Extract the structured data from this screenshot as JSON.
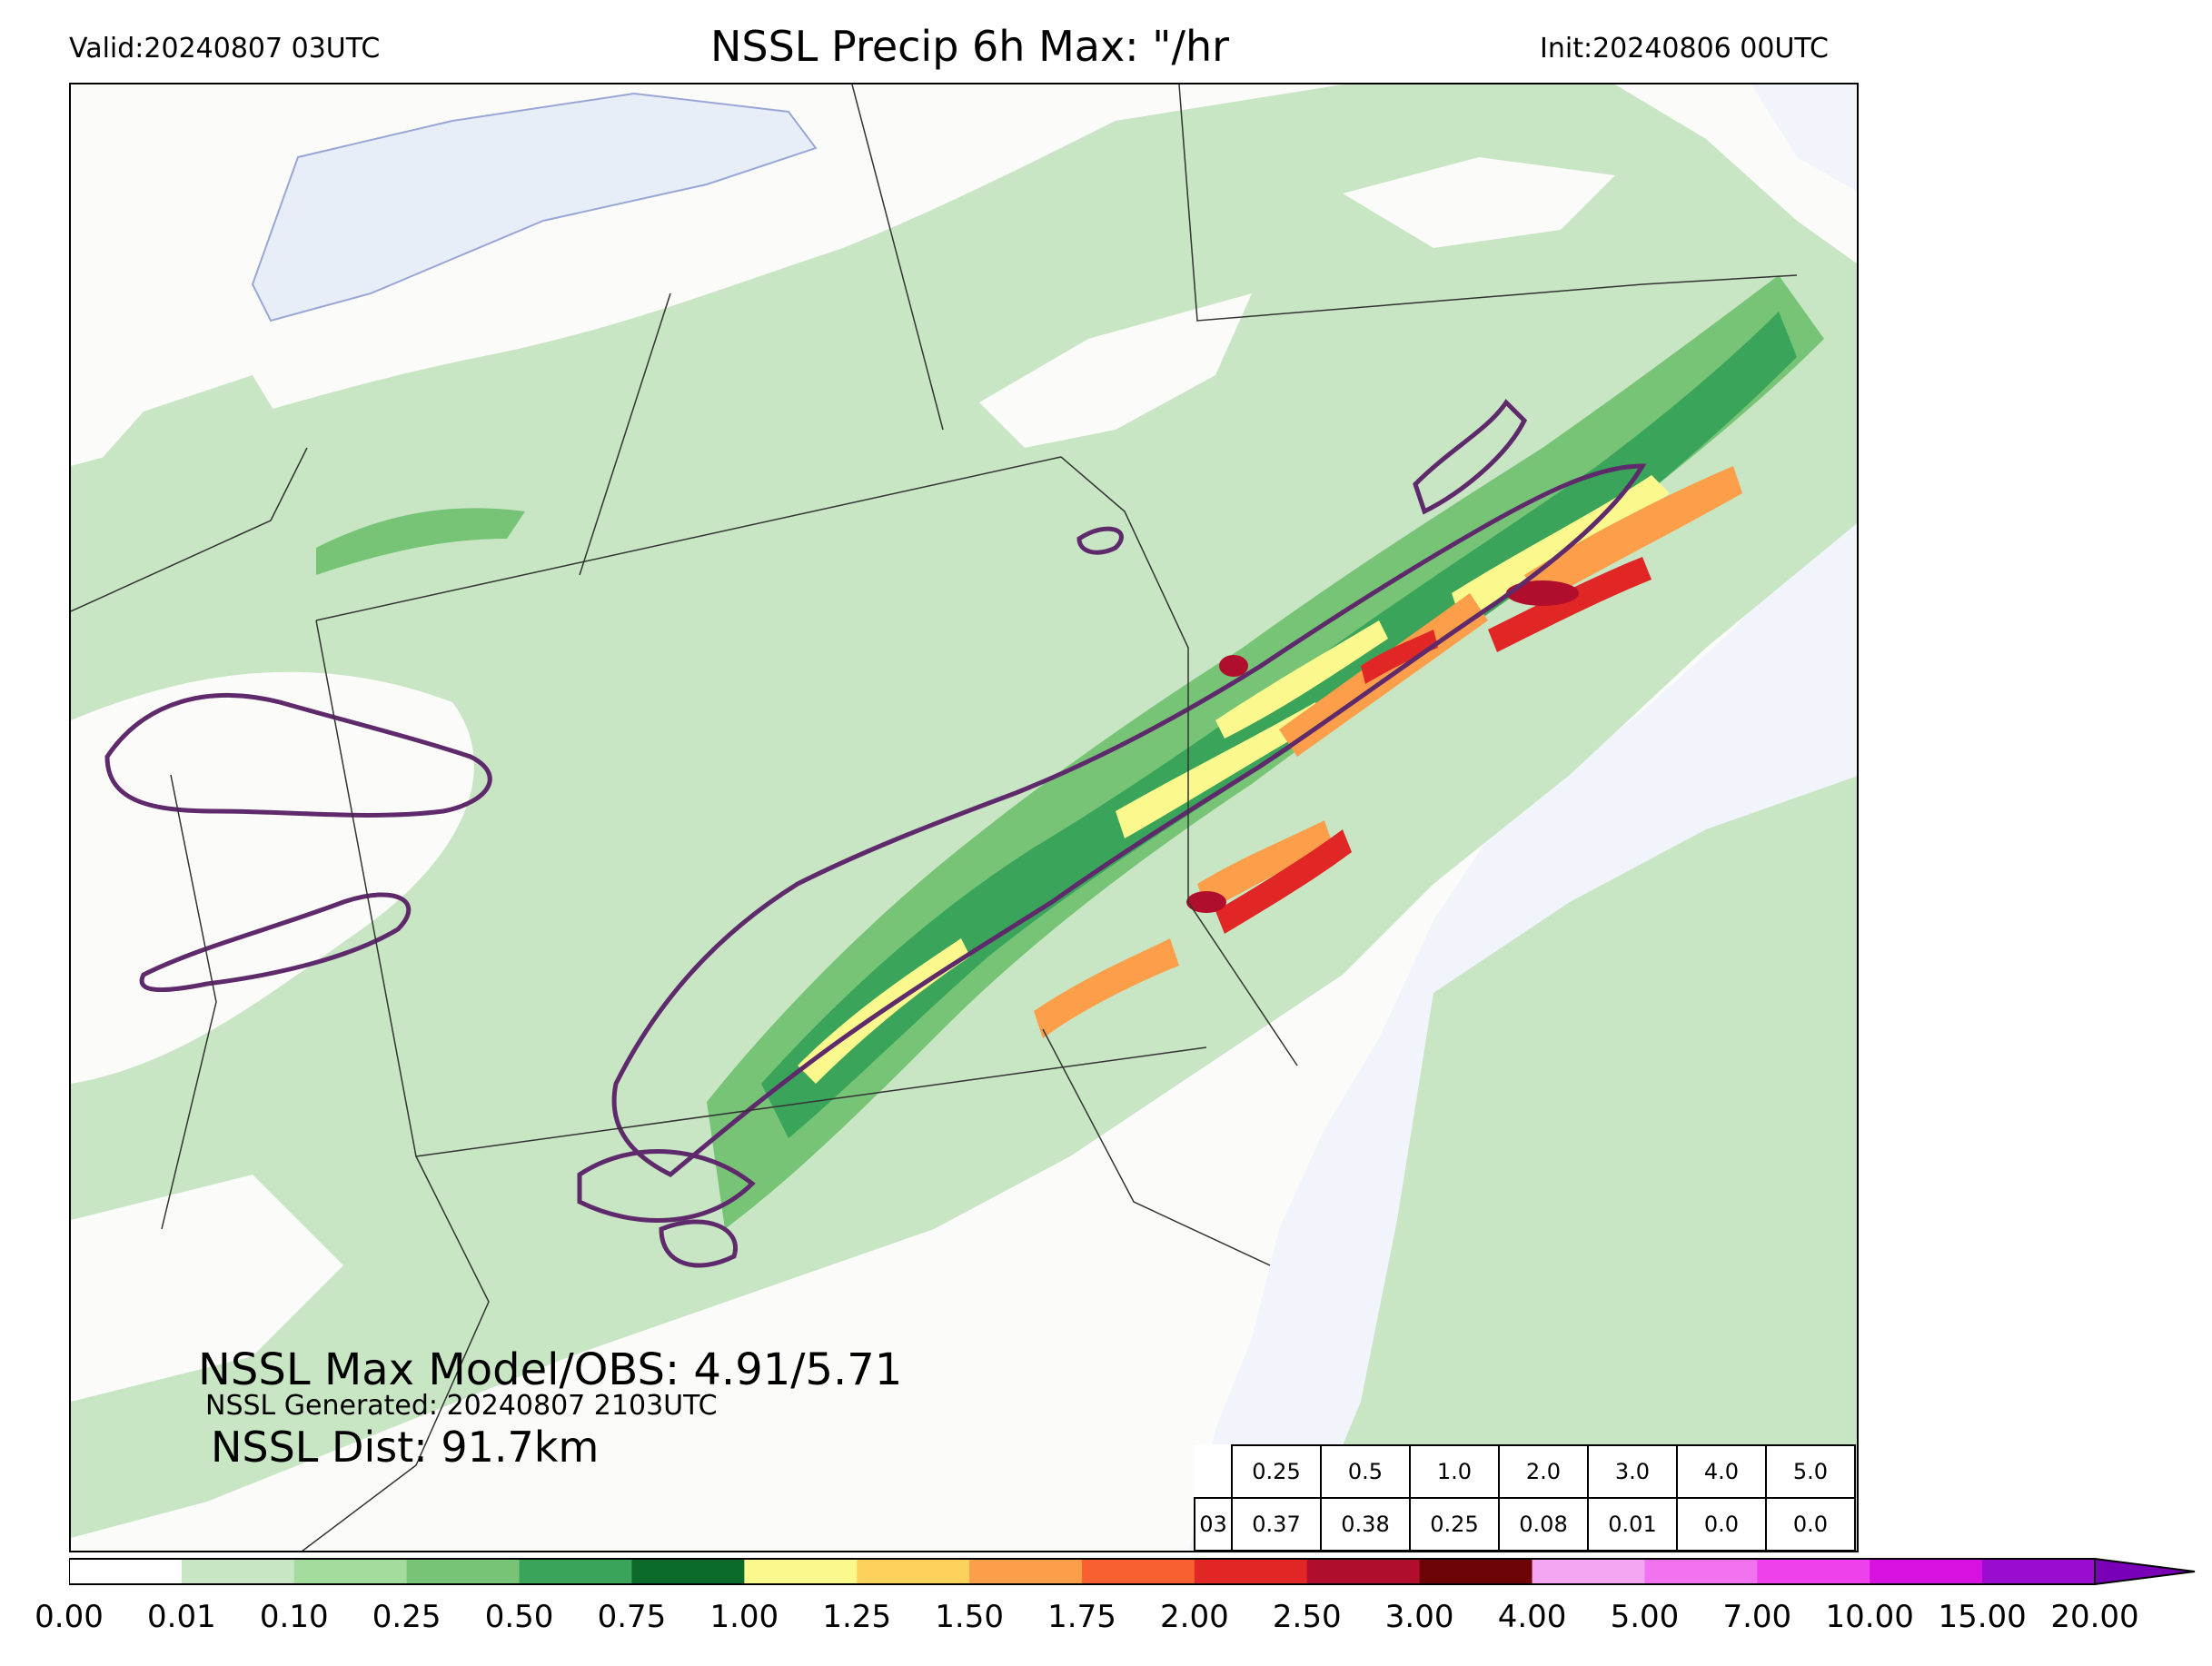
{
  "header": {
    "valid": "Valid:20240807 03UTC",
    "title": "NSSL Precip 6h Max: \"/hr",
    "init": "Init:20240806 00UTC"
  },
  "annotations": {
    "max_model_obs": "NSSL Max Model/OBS: 4.91/5.71",
    "generated": "NSSL Generated: 20240807 2103UTC",
    "distance": "NSSL Dist: 91.7km"
  },
  "stats_table": {
    "thresholds": [
      "0.25",
      "0.5",
      "1.0",
      "2.0",
      "3.0",
      "4.0",
      "5.0"
    ],
    "row_label": "03",
    "values": [
      "0.37",
      "0.38",
      "0.25",
      "0.08",
      "0.01",
      "0.0",
      "0.0"
    ]
  },
  "colorbar": {
    "ticks": [
      "0.00",
      "0.01",
      "0.10",
      "0.25",
      "0.50",
      "0.75",
      "1.00",
      "1.25",
      "1.50",
      "1.75",
      "2.00",
      "2.50",
      "3.00",
      "4.00",
      "5.00",
      "7.00",
      "10.00",
      "15.00",
      "20.00"
    ],
    "colors": [
      "#ffffff",
      "#c8e6c4",
      "#a3dc9c",
      "#77c477",
      "#3aa55a",
      "#0c6b2a",
      "#fbf88e",
      "#fdd25c",
      "#fc9e4a",
      "#f8612f",
      "#e02726",
      "#b10d2c",
      "#6c0406",
      "#f5a6f2",
      "#f173f0",
      "#ef40ee",
      "#d711e0",
      "#9a0ccf"
    ],
    "extend_color": "#7a00b8"
  },
  "map_colors": {
    "ocean": "#f1f5fb",
    "land": "#fbfbfa",
    "contour": "#5e2a6b",
    "borders": "#333333"
  }
}
